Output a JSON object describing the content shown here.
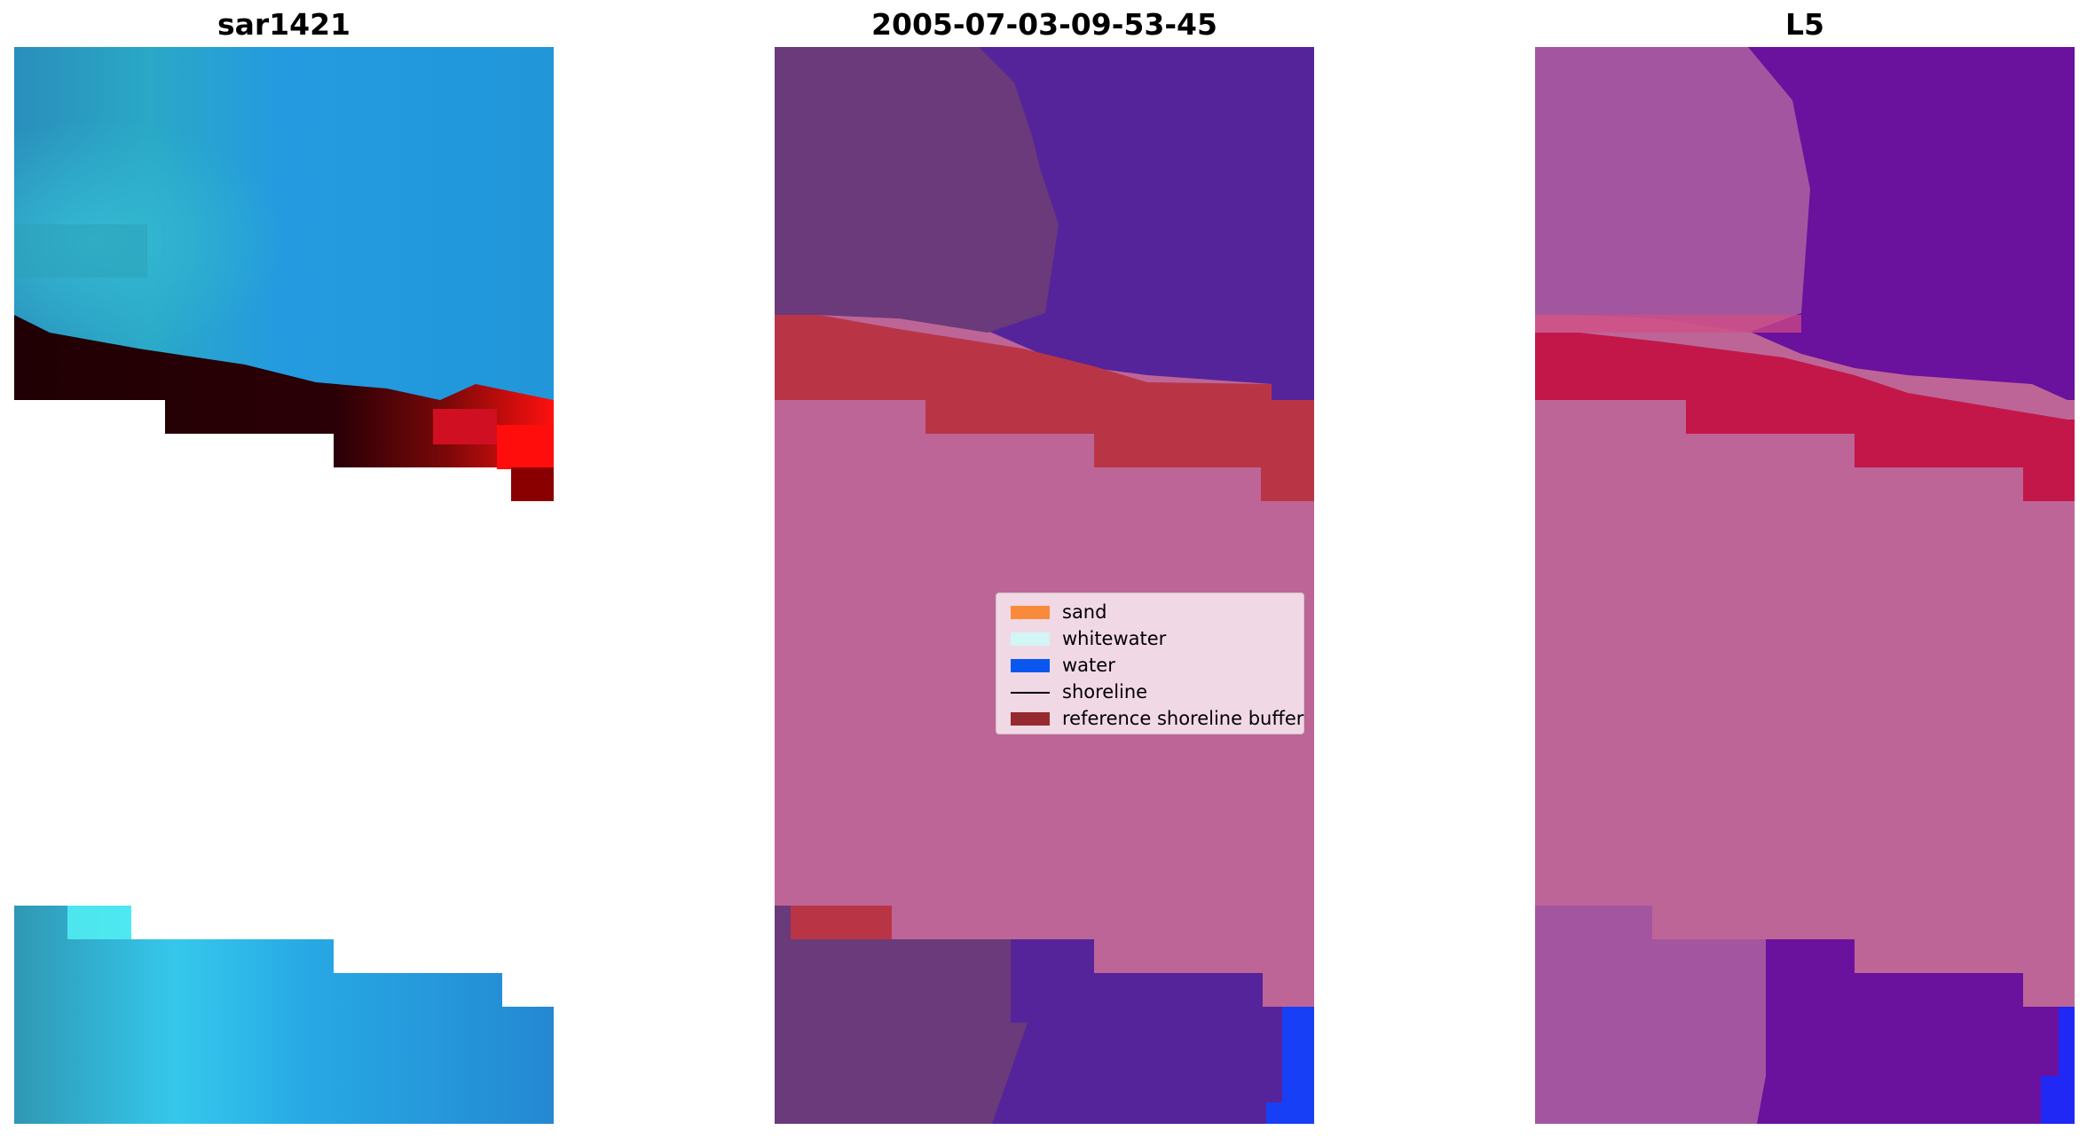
{
  "panels": [
    {
      "title": "sar1421"
    },
    {
      "title": "2005-07-03-09-53-45"
    },
    {
      "title": "L5"
    }
  ],
  "legend": {
    "items": [
      {
        "label": "sand",
        "color": "#f98a3c",
        "kind": "patch"
      },
      {
        "label": "whitewater",
        "color": "#d2f5f5",
        "kind": "patch"
      },
      {
        "label": "water",
        "color": "#0a57f0",
        "kind": "patch"
      },
      {
        "label": "shoreline",
        "color": "#000000",
        "kind": "line"
      },
      {
        "label": "reference shoreline buffer",
        "color": "#962a2f",
        "kind": "patch"
      }
    ]
  },
  "colors": {
    "sar_sea": "#2297dc",
    "sar_cyan": "#35bcd4",
    "sar_dark": "#250004",
    "sar_red": "#ff0d0d",
    "class_pink": "#bd6597",
    "class_purple": "#56249a",
    "class_muted_purple": "#6a3a7a",
    "class_red": "#b93546",
    "class_blue": "#1740f6",
    "l5_pink": "#bd6597",
    "l5_violet": "#6a119e",
    "l5_magenta": "#a3569f",
    "l5_crimson": "#c3174a"
  }
}
